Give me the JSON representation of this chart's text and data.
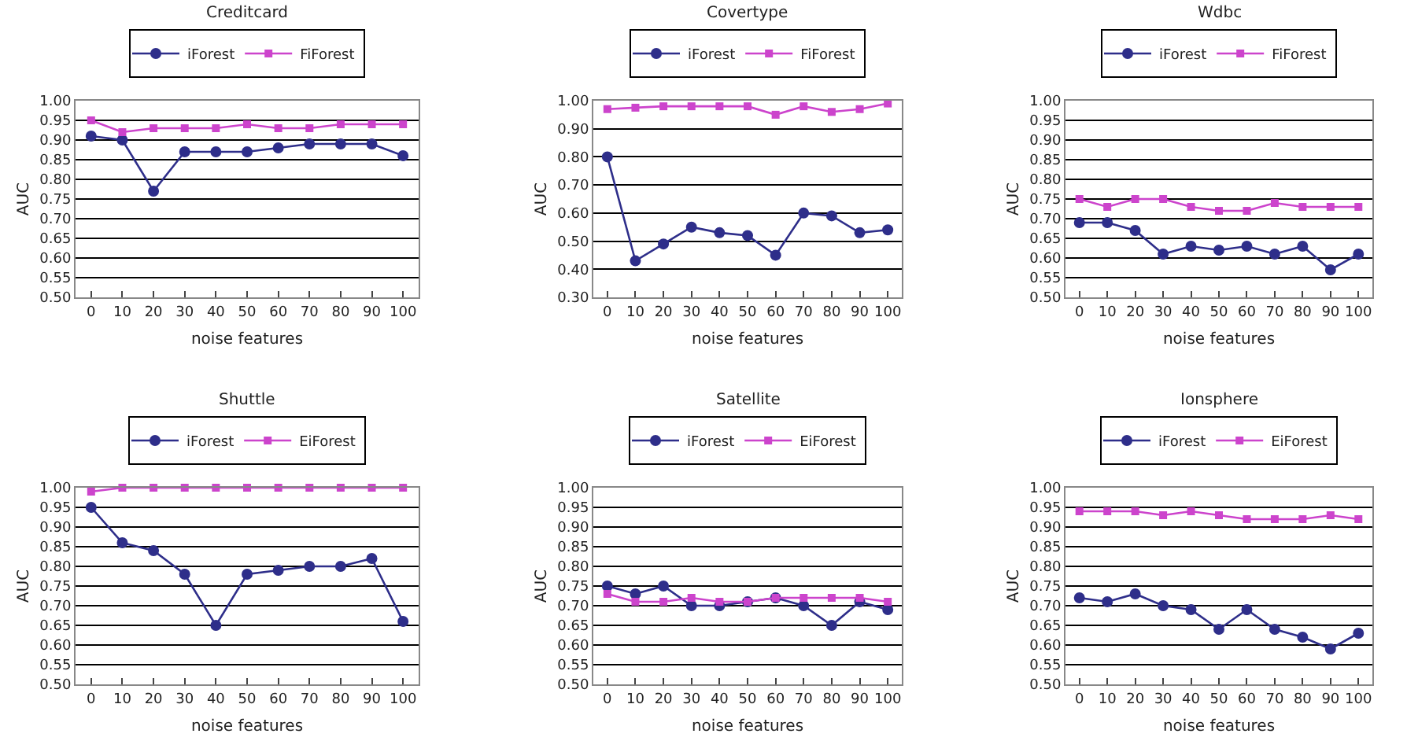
{
  "chart_data": [
    {
      "type": "line",
      "title": "Creditcard",
      "xlabel": "noise features",
      "ylabel": "AUC",
      "categories": [
        "0",
        "10",
        "20",
        "30",
        "40",
        "50",
        "60",
        "70",
        "80",
        "90",
        "100"
      ],
      "ylim": [
        0.5,
        1.0
      ],
      "yticks": [
        {
          "value": 0.5,
          "label": "0.50"
        },
        {
          "value": 0.55,
          "label": "0.55"
        },
        {
          "value": 0.6,
          "label": "0.60"
        },
        {
          "value": 0.65,
          "label": "0.65"
        },
        {
          "value": 0.7,
          "label": "0.70"
        },
        {
          "value": 0.75,
          "label": "0.75"
        },
        {
          "value": 0.8,
          "label": "0.80"
        },
        {
          "value": 0.85,
          "label": "0.85"
        },
        {
          "value": 0.9,
          "label": "0.90"
        },
        {
          "value": 0.95,
          "label": "0.95"
        },
        {
          "value": 1.0,
          "label": "1.00"
        }
      ],
      "grid": "y",
      "legend": "top",
      "line_style": "solid",
      "series": [
        {
          "name": "iForest",
          "color": "#2e2e8a",
          "marker": "circle",
          "values": [
            0.91,
            0.9,
            0.77,
            0.87,
            0.87,
            0.87,
            0.88,
            0.89,
            0.89,
            0.89,
            0.86
          ]
        },
        {
          "name": "FiForest",
          "color": "#cc44cc",
          "marker": "square",
          "values": [
            0.95,
            0.92,
            0.93,
            0.93,
            0.93,
            0.94,
            0.93,
            0.93,
            0.94,
            0.94,
            0.94
          ]
        }
      ]
    },
    {
      "type": "line",
      "title": "Covertype",
      "xlabel": "noise features",
      "ylabel": "AUC",
      "categories": [
        "0",
        "10",
        "20",
        "30",
        "40",
        "50",
        "60",
        "70",
        "80",
        "90",
        "100"
      ],
      "ylim": [
        0.3,
        1.0
      ],
      "yticks": [
        {
          "value": 0.3,
          "label": "0.30"
        },
        {
          "value": 0.4,
          "label": "0.40"
        },
        {
          "value": 0.5,
          "label": "0.50"
        },
        {
          "value": 0.6,
          "label": "0.60"
        },
        {
          "value": 0.7,
          "label": "0.70"
        },
        {
          "value": 0.8,
          "label": "0.80"
        },
        {
          "value": 0.9,
          "label": "0.90"
        },
        {
          "value": 1.0,
          "label": "1.00"
        }
      ],
      "grid": "y",
      "legend": "top",
      "line_style": "solid",
      "series": [
        {
          "name": "iForest",
          "color": "#2e2e8a",
          "marker": "circle",
          "values": [
            0.8,
            0.43,
            0.49,
            0.55,
            0.53,
            0.52,
            0.45,
            0.6,
            0.59,
            0.53,
            0.54
          ]
        },
        {
          "name": "FiForest",
          "color": "#cc44cc",
          "marker": "square",
          "values": [
            0.97,
            0.975,
            0.98,
            0.98,
            0.98,
            0.98,
            0.95,
            0.98,
            0.96,
            0.97,
            0.99
          ]
        }
      ]
    },
    {
      "type": "line",
      "title": "Wdbc",
      "xlabel": "noise features",
      "ylabel": "AUC",
      "categories": [
        "0",
        "10",
        "20",
        "30",
        "40",
        "50",
        "60",
        "70",
        "80",
        "90",
        "100"
      ],
      "ylim": [
        0.5,
        1.0
      ],
      "yticks": [
        {
          "value": 0.5,
          "label": "0.50"
        },
        {
          "value": 0.55,
          "label": "0.55"
        },
        {
          "value": 0.6,
          "label": "0.60"
        },
        {
          "value": 0.65,
          "label": "0.65"
        },
        {
          "value": 0.7,
          "label": "0.70"
        },
        {
          "value": 0.75,
          "label": "0.75"
        },
        {
          "value": 0.8,
          "label": "0.80"
        },
        {
          "value": 0.85,
          "label": "0.85"
        },
        {
          "value": 0.9,
          "label": "0.90"
        },
        {
          "value": 0.95,
          "label": "0.95"
        },
        {
          "value": 1.0,
          "label": "1.00"
        }
      ],
      "grid": "y",
      "legend": "top",
      "line_style": "solid",
      "series": [
        {
          "name": "iForest",
          "color": "#2e2e8a",
          "marker": "circle",
          "values": [
            0.69,
            0.69,
            0.67,
            0.61,
            0.63,
            0.62,
            0.63,
            0.61,
            0.63,
            0.57,
            0.61
          ]
        },
        {
          "name": "FiForest",
          "color": "#cc44cc",
          "marker": "square",
          "values": [
            0.75,
            0.73,
            0.75,
            0.75,
            0.73,
            0.72,
            0.72,
            0.74,
            0.73,
            0.73,
            0.73
          ]
        }
      ]
    },
    {
      "type": "line",
      "title": "Shuttle",
      "xlabel": "noise features",
      "ylabel": "AUC",
      "categories": [
        "0",
        "10",
        "20",
        "30",
        "40",
        "50",
        "60",
        "70",
        "80",
        "90",
        "100"
      ],
      "ylim": [
        0.5,
        1.0
      ],
      "yticks": [
        {
          "value": 0.5,
          "label": "0.50"
        },
        {
          "value": 0.55,
          "label": "0.55"
        },
        {
          "value": 0.6,
          "label": "0.60"
        },
        {
          "value": 0.65,
          "label": "0.65"
        },
        {
          "value": 0.7,
          "label": "0.70"
        },
        {
          "value": 0.75,
          "label": "0.75"
        },
        {
          "value": 0.8,
          "label": "0.80"
        },
        {
          "value": 0.85,
          "label": "0.85"
        },
        {
          "value": 0.9,
          "label": "0.90"
        },
        {
          "value": 0.95,
          "label": "0.95"
        },
        {
          "value": 1.0,
          "label": "1.00"
        }
      ],
      "grid": "y",
      "legend": "top",
      "line_style": "solid",
      "series": [
        {
          "name": "iForest",
          "color": "#2e2e8a",
          "marker": "circle",
          "values": [
            0.95,
            0.86,
            0.84,
            0.78,
            0.65,
            0.78,
            0.79,
            0.8,
            0.8,
            0.82,
            0.66
          ]
        },
        {
          "name": "EiForest",
          "color": "#cc44cc",
          "marker": "square",
          "values": [
            0.99,
            1.0,
            1.0,
            1.0,
            1.0,
            1.0,
            1.0,
            1.0,
            1.0,
            1.0,
            1.0
          ]
        }
      ]
    },
    {
      "type": "line",
      "title": "Satellite",
      "xlabel": "noise features",
      "ylabel": "AUC",
      "categories": [
        "0",
        "10",
        "20",
        "30",
        "40",
        "50",
        "60",
        "70",
        "80",
        "90",
        "100"
      ],
      "ylim": [
        0.5,
        1.0
      ],
      "yticks": [
        {
          "value": 0.5,
          "label": "0.50"
        },
        {
          "value": 0.55,
          "label": "0.55"
        },
        {
          "value": 0.6,
          "label": "0.60"
        },
        {
          "value": 0.65,
          "label": "0.65"
        },
        {
          "value": 0.7,
          "label": "0.70"
        },
        {
          "value": 0.75,
          "label": "0.75"
        },
        {
          "value": 0.8,
          "label": "0.80"
        },
        {
          "value": 0.85,
          "label": "0.85"
        },
        {
          "value": 0.9,
          "label": "0.90"
        },
        {
          "value": 0.95,
          "label": "0.95"
        },
        {
          "value": 1.0,
          "label": "1.00"
        }
      ],
      "grid": "y",
      "legend": "top",
      "line_style": "solid",
      "series": [
        {
          "name": "iForest",
          "color": "#2e2e8a",
          "marker": "circle",
          "values": [
            0.75,
            0.73,
            0.75,
            0.7,
            0.7,
            0.71,
            0.72,
            0.7,
            0.65,
            0.71,
            0.69
          ]
        },
        {
          "name": "EiForest",
          "color": "#cc44cc",
          "marker": "square",
          "values": [
            0.73,
            0.71,
            0.71,
            0.72,
            0.71,
            0.71,
            0.72,
            0.72,
            0.72,
            0.72,
            0.71
          ]
        }
      ]
    },
    {
      "type": "line",
      "title": "Ionsphere",
      "xlabel": "noise features",
      "ylabel": "AUC",
      "categories": [
        "0",
        "10",
        "20",
        "30",
        "40",
        "50",
        "60",
        "70",
        "80",
        "90",
        "100"
      ],
      "ylim": [
        0.5,
        1.0
      ],
      "yticks": [
        {
          "value": 0.5,
          "label": "0.50"
        },
        {
          "value": 0.55,
          "label": "0.55"
        },
        {
          "value": 0.6,
          "label": "0.60"
        },
        {
          "value": 0.65,
          "label": "0.65"
        },
        {
          "value": 0.7,
          "label": "0.70"
        },
        {
          "value": 0.75,
          "label": "0.75"
        },
        {
          "value": 0.8,
          "label": "0.80"
        },
        {
          "value": 0.85,
          "label": "0.85"
        },
        {
          "value": 0.9,
          "label": "0.90"
        },
        {
          "value": 0.95,
          "label": "0.95"
        },
        {
          "value": 1.0,
          "label": "1.00"
        }
      ],
      "grid": "y",
      "legend": "top",
      "line_style": "solid",
      "series": [
        {
          "name": "iForest",
          "color": "#2e2e8a",
          "marker": "circle",
          "values": [
            0.72,
            0.71,
            0.73,
            0.7,
            0.69,
            0.64,
            0.69,
            0.64,
            0.62,
            0.59,
            0.63
          ]
        },
        {
          "name": "EiForest",
          "color": "#cc44cc",
          "marker": "square",
          "values": [
            0.94,
            0.94,
            0.94,
            0.93,
            0.94,
            0.93,
            0.92,
            0.92,
            0.92,
            0.93,
            0.92
          ]
        }
      ]
    }
  ]
}
